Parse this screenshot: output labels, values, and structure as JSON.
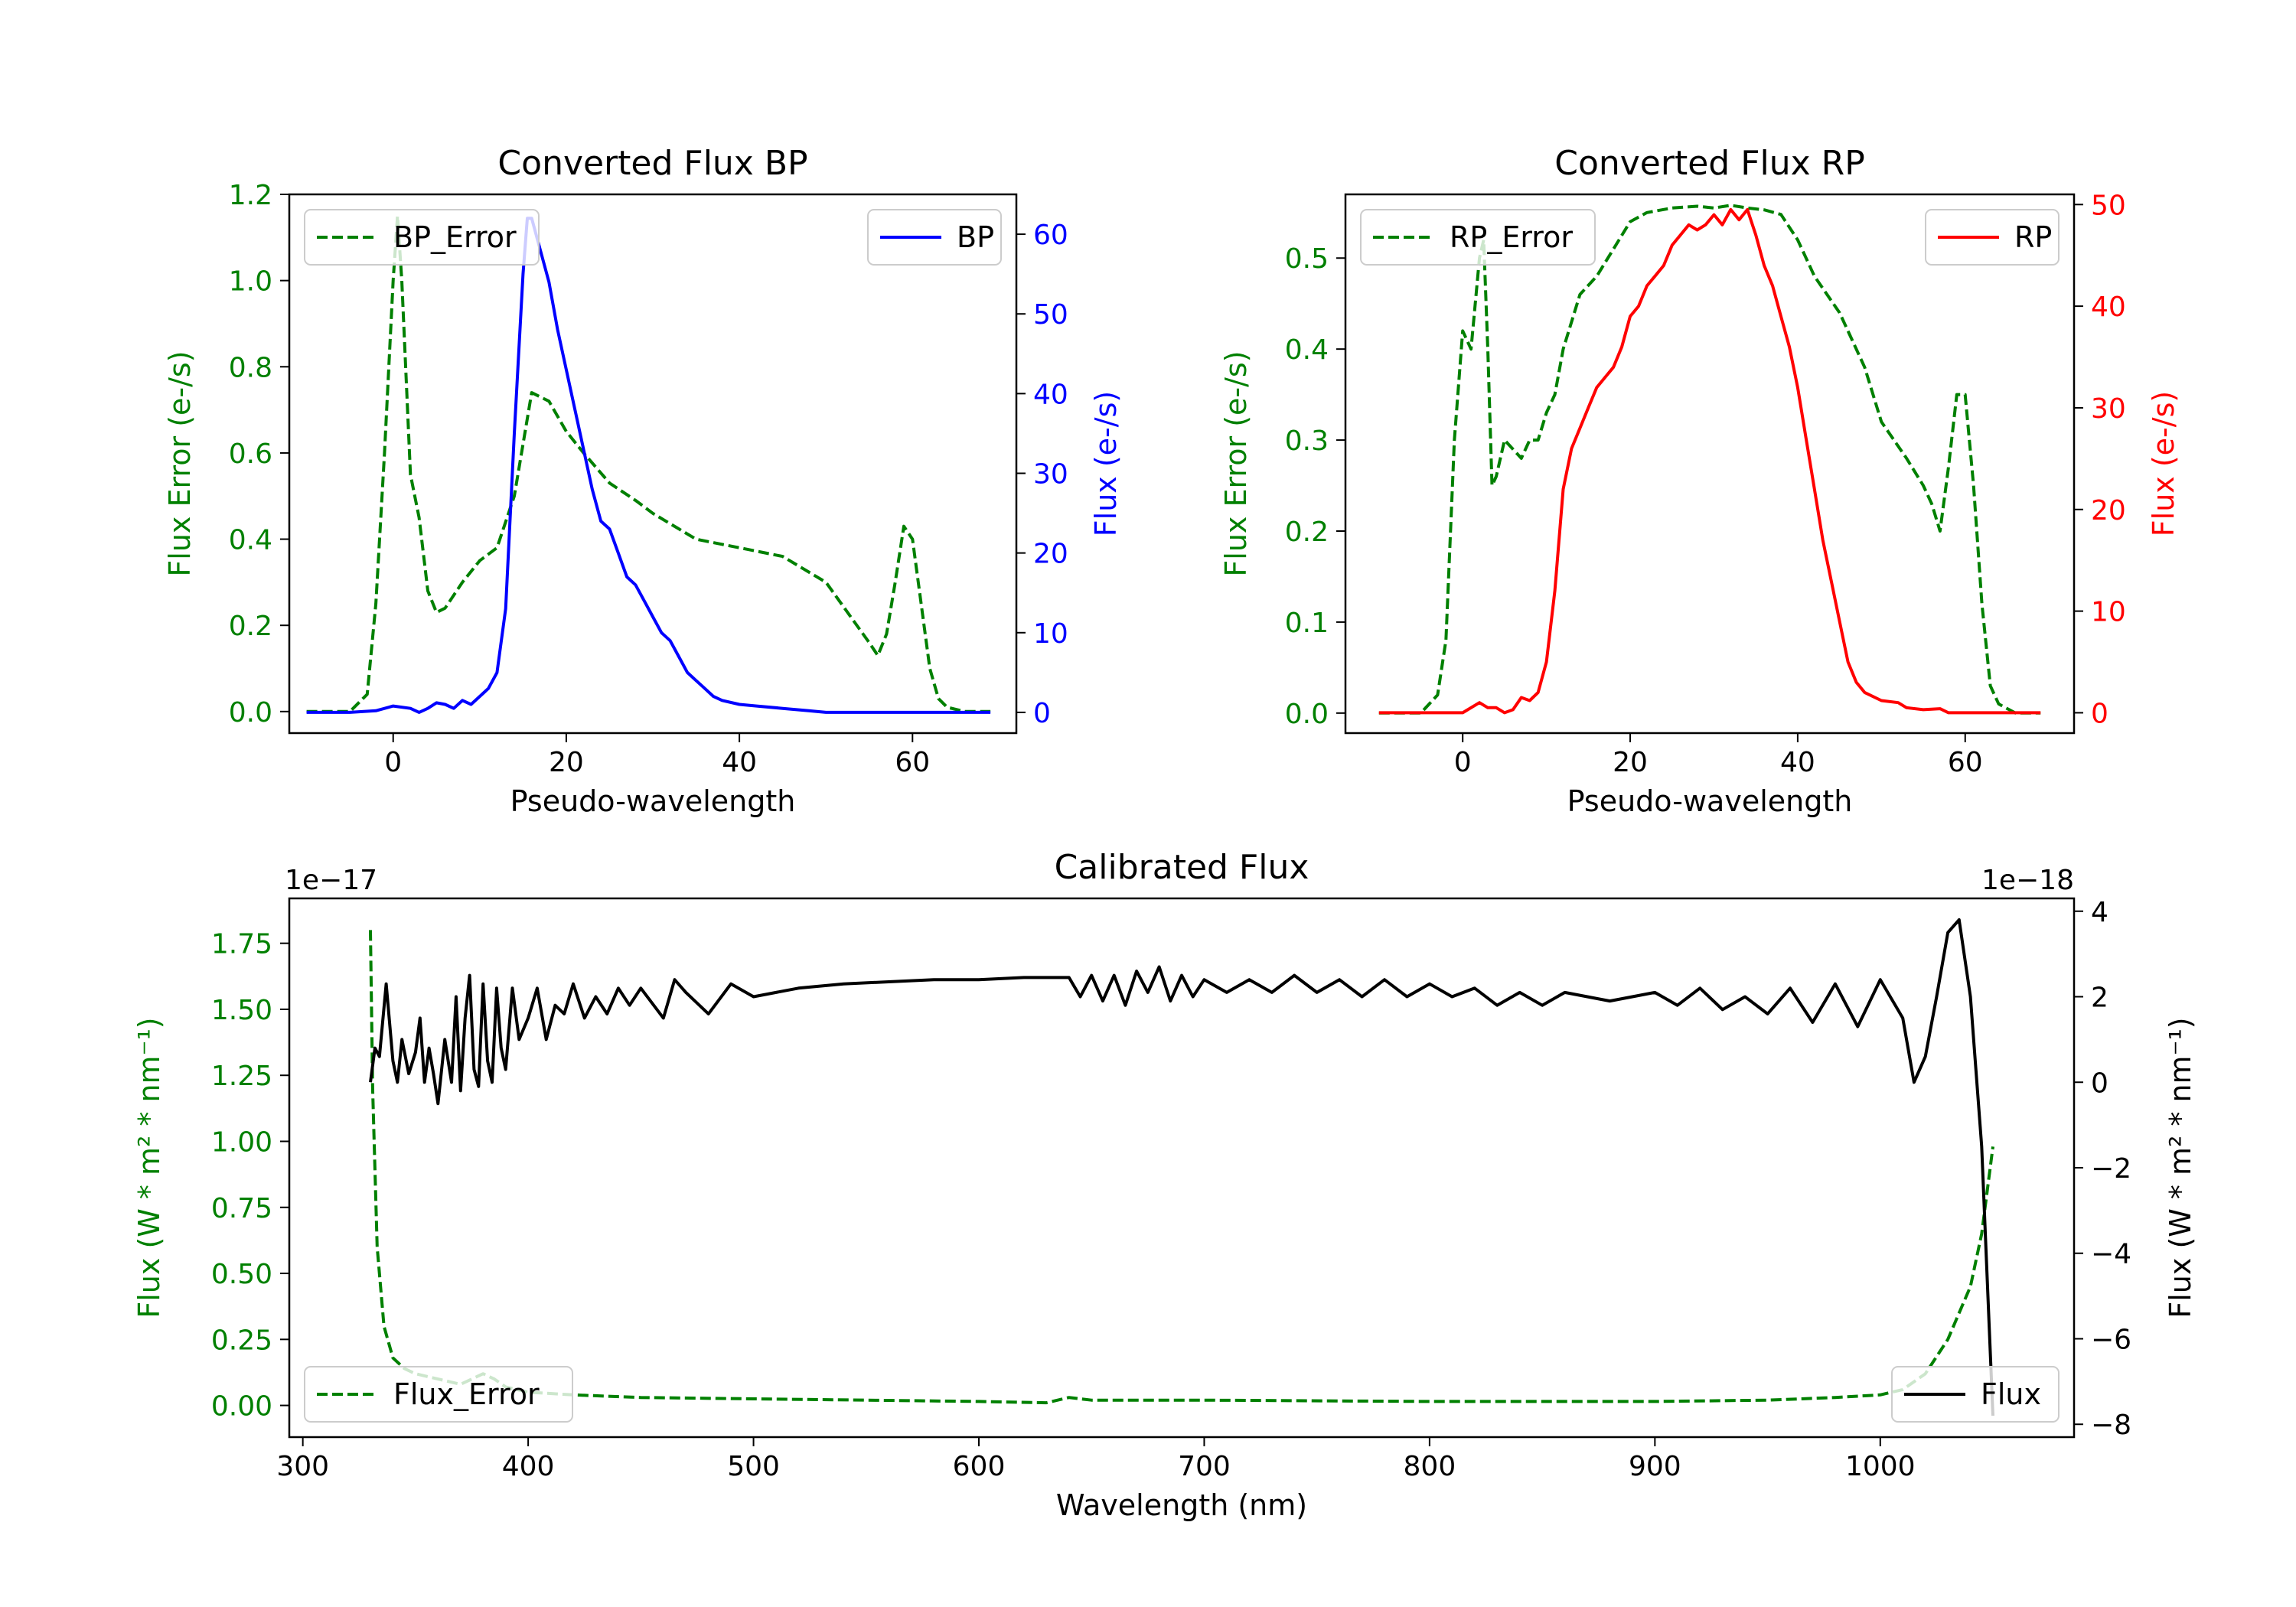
{
  "chart_data": [
    {
      "type": "line",
      "title": "Converted Flux BP",
      "xlabel": "Pseudo-wavelength",
      "ylabel_left": "Flux Error (e-/s)",
      "ylabel_right": "Flux (e-/s)",
      "xlim": [
        -12,
        72
      ],
      "ylim_left": [
        -0.05,
        1.2
      ],
      "ylim_right": [
        -2.6,
        65
      ],
      "x_ticks": [
        0,
        20,
        40,
        60
      ],
      "y_ticks_left": [
        0.0,
        0.2,
        0.4,
        0.6,
        0.8,
        1.0,
        1.2
      ],
      "y_tick_labels_left": [
        "0.0",
        "0.2",
        "0.4",
        "0.6",
        "0.8",
        "1.0",
        "1.2"
      ],
      "y_ticks_right": [
        0,
        10,
        20,
        30,
        40,
        50,
        60
      ],
      "left_color": "#008000",
      "right_color": "#0000ff",
      "legend_left_pos": "top-left",
      "legend_right_pos": "top-right",
      "series": [
        {
          "name": "BP_Error",
          "axis": "left",
          "style": "dashed",
          "color": "#008000",
          "x": [
            -10,
            -5,
            -3,
            -2,
            -1,
            0,
            0.5,
            1,
            2,
            3,
            4,
            5,
            6,
            8,
            10,
            12,
            14,
            16,
            18,
            20,
            22,
            25,
            28,
            30,
            35,
            40,
            45,
            50,
            55,
            56,
            57,
            58,
            59,
            60,
            61,
            62,
            63,
            64,
            66,
            69
          ],
          "y": [
            0.0,
            0.0,
            0.04,
            0.25,
            0.6,
            1.0,
            1.15,
            1.0,
            0.55,
            0.45,
            0.28,
            0.23,
            0.24,
            0.3,
            0.35,
            0.38,
            0.5,
            0.74,
            0.72,
            0.65,
            0.6,
            0.53,
            0.49,
            0.46,
            0.4,
            0.38,
            0.36,
            0.3,
            0.16,
            0.13,
            0.18,
            0.3,
            0.43,
            0.4,
            0.25,
            0.1,
            0.03,
            0.01,
            0.0,
            0.0
          ]
        },
        {
          "name": "BP",
          "axis": "right",
          "style": "solid",
          "color": "#0000ff",
          "x": [
            -10,
            -5,
            -2,
            0,
            2,
            3,
            4,
            5,
            6,
            7,
            8,
            9,
            10,
            11,
            12,
            13,
            14,
            15,
            15.5,
            16,
            17,
            18,
            19,
            20,
            21,
            22,
            23,
            24,
            25,
            26,
            27,
            28,
            29,
            30,
            31,
            32,
            33,
            34,
            35,
            36,
            37,
            38,
            40,
            42,
            45,
            48,
            50,
            55,
            60,
            65,
            69
          ],
          "y": [
            0,
            0,
            0.2,
            0.8,
            0.5,
            0,
            0.5,
            1.2,
            1.0,
            0.5,
            1.5,
            1.0,
            2.0,
            3.0,
            5.0,
            13.0,
            35.0,
            55.0,
            62.0,
            62.0,
            58.0,
            54.0,
            48.0,
            43.0,
            38.0,
            33.0,
            28.0,
            24.0,
            23.0,
            20.0,
            17.0,
            16.0,
            14.0,
            12.0,
            10.0,
            9.0,
            7.0,
            5.0,
            4.0,
            3.0,
            2.0,
            1.5,
            1.0,
            0.8,
            0.5,
            0.2,
            0,
            0,
            0,
            0,
            0
          ]
        }
      ]
    },
    {
      "type": "line",
      "title": "Converted Flux RP",
      "xlabel": "Pseudo-wavelength",
      "ylabel_left": "Flux Error (e-/s)",
      "ylabel_right": "Flux (e-/s)",
      "xlim": [
        -14,
        73
      ],
      "ylim_left": [
        -0.022,
        0.57
      ],
      "ylim_right": [
        -2,
        51
      ],
      "x_ticks": [
        0,
        20,
        40,
        60
      ],
      "y_ticks_left": [
        0.0,
        0.1,
        0.2,
        0.3,
        0.4,
        0.5
      ],
      "y_tick_labels_left": [
        "0.0",
        "0.1",
        "0.2",
        "0.3",
        "0.4",
        "0.5"
      ],
      "y_ticks_right": [
        0,
        10,
        20,
        30,
        40,
        50
      ],
      "left_color": "#008000",
      "right_color": "#ff0000",
      "legend_left_pos": "top-left",
      "legend_right_pos": "top-right",
      "series": [
        {
          "name": "RP_Error",
          "axis": "left",
          "style": "dashed",
          "color": "#008000",
          "x": [
            -10,
            -5,
            -3,
            -2,
            -1,
            0,
            1,
            2,
            2.5,
            3,
            3.5,
            4,
            5,
            6,
            7,
            8,
            9,
            10,
            11,
            12,
            14,
            16,
            18,
            20,
            22,
            25,
            28,
            30,
            32,
            34,
            36,
            38,
            40,
            42,
            45,
            48,
            50,
            53,
            55,
            56,
            57,
            58,
            59,
            60,
            61,
            62,
            63,
            64,
            66,
            69
          ],
          "y": [
            0,
            0,
            0.02,
            0.08,
            0.3,
            0.42,
            0.4,
            0.5,
            0.52,
            0.4,
            0.25,
            0.26,
            0.3,
            0.29,
            0.28,
            0.3,
            0.3,
            0.33,
            0.35,
            0.4,
            0.46,
            0.48,
            0.51,
            0.54,
            0.55,
            0.555,
            0.557,
            0.555,
            0.558,
            0.555,
            0.553,
            0.548,
            0.52,
            0.48,
            0.44,
            0.38,
            0.32,
            0.28,
            0.25,
            0.23,
            0.2,
            0.27,
            0.35,
            0.35,
            0.25,
            0.12,
            0.03,
            0.01,
            0,
            0
          ]
        },
        {
          "name": "RP",
          "axis": "right",
          "style": "solid",
          "color": "#ff0000",
          "x": [
            -10,
            -5,
            0,
            2,
            3,
            4,
            5,
            6,
            7,
            8,
            9,
            10,
            11,
            12,
            13,
            14,
            15,
            16,
            17,
            18,
            19,
            20,
            21,
            22,
            23,
            24,
            25,
            26,
            27,
            28,
            29,
            30,
            31,
            32,
            33,
            34,
            35,
            36,
            37,
            38,
            39,
            40,
            41,
            42,
            43,
            44,
            45,
            46,
            47,
            48,
            50,
            52,
            53,
            55,
            57,
            58,
            60,
            62,
            65,
            69
          ],
          "y": [
            0,
            0,
            0,
            1,
            0.5,
            0.5,
            0,
            0.3,
            1.5,
            1.2,
            2.0,
            5.0,
            12.0,
            22.0,
            26.0,
            28.0,
            30.0,
            32.0,
            33.0,
            34.0,
            36.0,
            39.0,
            40.0,
            42.0,
            43.0,
            44.0,
            46.0,
            47.0,
            48.0,
            47.5,
            48.0,
            49.0,
            48.0,
            49.5,
            48.5,
            49.5,
            47.0,
            44.0,
            42.0,
            39.0,
            36.0,
            32.0,
            27.0,
            22.0,
            17.0,
            13.0,
            9.0,
            5.0,
            3.0,
            2.0,
            1.2,
            1.0,
            0.5,
            0.3,
            0.4,
            0,
            0,
            0,
            0,
            0
          ]
        }
      ]
    },
    {
      "type": "line",
      "title": "Calibrated Flux",
      "xlabel": "Wavelength (nm)",
      "ylabel_left": "Flux (W * m² * nm⁻¹)",
      "ylabel_right": "Flux (W * m² * nm⁻¹)",
      "xlim": [
        294,
        1086
      ],
      "ylim_left": [
        -0.12,
        1.92
      ],
      "ylim_right": [
        -8.3,
        4.3
      ],
      "x_ticks": [
        300,
        400,
        500,
        600,
        700,
        800,
        900,
        1000
      ],
      "y_ticks_left": [
        0.0,
        0.25,
        0.5,
        0.75,
        1.0,
        1.25,
        1.5,
        1.75
      ],
      "y_tick_labels_left": [
        "0.00",
        "0.25",
        "0.50",
        "0.75",
        "1.00",
        "1.25",
        "1.50",
        "1.75"
      ],
      "y_ticks_right": [
        -8,
        -6,
        -4,
        -2,
        0,
        2,
        4
      ],
      "y_tick_labels_right": [
        "−8",
        "−6",
        "−4",
        "−2",
        "0",
        "2",
        "4"
      ],
      "left_offset_text": "1e−17",
      "right_offset_text": "1e−18",
      "left_color": "#008000",
      "right_color": "#000000",
      "legend_left_pos": "bottom-left",
      "legend_right_pos": "bottom-right",
      "series": [
        {
          "name": "Flux_Error",
          "axis": "left",
          "style": "dashed",
          "color": "#008000",
          "x": [
            330,
            331,
            333,
            336,
            340,
            345,
            350,
            360,
            370,
            380,
            385,
            390,
            400,
            420,
            450,
            500,
            550,
            600,
            630,
            640,
            650,
            700,
            800,
            900,
            950,
            980,
            1000,
            1010,
            1020,
            1030,
            1035,
            1040,
            1045,
            1050
          ],
          "y": [
            1.8,
            1.2,
            0.6,
            0.3,
            0.18,
            0.14,
            0.12,
            0.1,
            0.08,
            0.12,
            0.1,
            0.07,
            0.05,
            0.04,
            0.03,
            0.025,
            0.02,
            0.015,
            0.01,
            0.03,
            0.02,
            0.02,
            0.015,
            0.015,
            0.02,
            0.03,
            0.04,
            0.06,
            0.12,
            0.25,
            0.35,
            0.45,
            0.65,
            0.98
          ]
        },
        {
          "name": "Flux",
          "axis": "right",
          "style": "solid",
          "color": "#000000",
          "x": [
            330,
            332,
            334,
            337,
            340,
            342,
            344,
            347,
            350,
            352,
            354,
            356,
            358,
            360,
            363,
            366,
            368,
            370,
            372,
            374,
            376,
            378,
            380,
            382,
            384,
            386,
            388,
            390,
            393,
            396,
            400,
            404,
            408,
            412,
            416,
            420,
            425,
            430,
            435,
            440,
            445,
            450,
            460,
            465,
            470,
            480,
            490,
            500,
            520,
            540,
            560,
            580,
            600,
            620,
            640,
            645,
            650,
            655,
            660,
            665,
            670,
            675,
            680,
            685,
            690,
            695,
            700,
            710,
            720,
            730,
            740,
            750,
            760,
            770,
            780,
            790,
            800,
            810,
            820,
            830,
            840,
            850,
            860,
            870,
            880,
            890,
            900,
            910,
            920,
            930,
            940,
            950,
            960,
            970,
            980,
            990,
            1000,
            1010,
            1015,
            1020,
            1025,
            1030,
            1035,
            1040,
            1045,
            1050
          ],
          "y": [
            0,
            0.8,
            0.6,
            2.3,
            0.5,
            0,
            1,
            0.2,
            0.7,
            1.5,
            0,
            0.8,
            0.2,
            -0.5,
            1,
            0,
            2,
            -0.2,
            1.5,
            2.5,
            0.3,
            -0.1,
            2.3,
            0.5,
            0,
            2.2,
            0.8,
            0.3,
            2.2,
            1,
            1.5,
            2.2,
            1,
            1.8,
            1.6,
            2.3,
            1.5,
            2,
            1.6,
            2.2,
            1.8,
            2.2,
            1.5,
            2.4,
            2.1,
            1.6,
            2.3,
            2.0,
            2.2,
            2.3,
            2.35,
            2.4,
            2.4,
            2.45,
            2.45,
            2.0,
            2.5,
            1.9,
            2.5,
            1.8,
            2.6,
            2.1,
            2.7,
            1.9,
            2.5,
            2.0,
            2.4,
            2.1,
            2.4,
            2.1,
            2.5,
            2.1,
            2.4,
            2.0,
            2.4,
            2.0,
            2.3,
            2.0,
            2.2,
            1.8,
            2.1,
            1.8,
            2.1,
            2.0,
            1.9,
            2.0,
            2.1,
            1.8,
            2.2,
            1.7,
            2.0,
            1.6,
            2.2,
            1.4,
            2.3,
            1.3,
            2.4,
            1.5,
            0.0,
            0.6,
            2.0,
            3.5,
            3.8,
            2.0,
            -1.5,
            -7.8
          ]
        }
      ]
    }
  ]
}
